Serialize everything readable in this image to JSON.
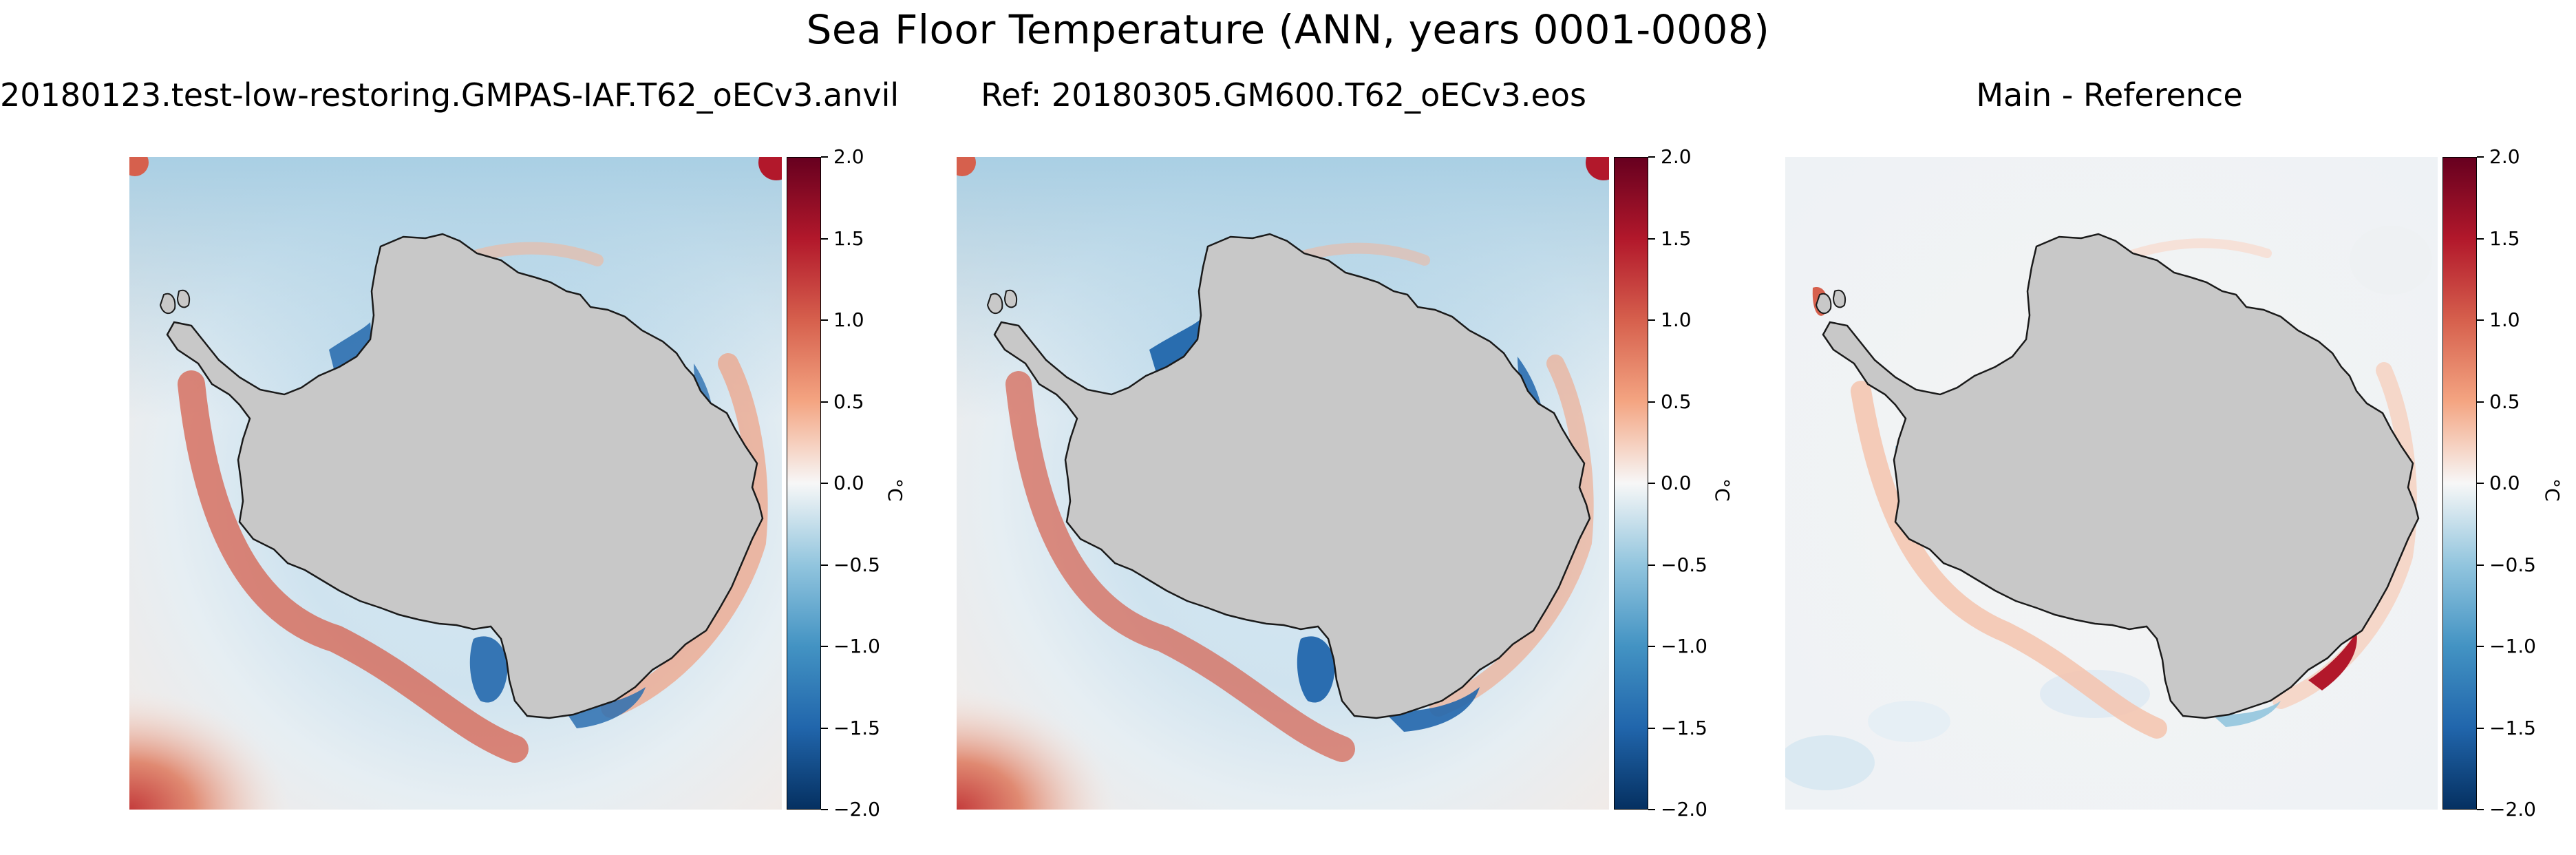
{
  "figure": {
    "title": "Sea Floor Temperature (ANN, years 0001-0008)"
  },
  "panels": [
    {
      "title": "20180123.test-low-restoring.GMPAS-IAF.T62_oECv3.anvil",
      "kind": "model"
    },
    {
      "title": "Ref: 20180305.GM600.T62_oECv3.eos",
      "kind": "reference"
    },
    {
      "title": "Main - Reference",
      "kind": "difference"
    }
  ],
  "colorbar": {
    "unit": "°C",
    "ticks": [
      "2.0",
      "1.5",
      "1.0",
      "0.5",
      "0.0",
      "−0.5",
      "−1.0",
      "−1.5",
      "−2.0"
    ],
    "range": [
      -2.0,
      2.0
    ],
    "colormap": "RdBu_r"
  },
  "colors": {
    "land": "#c8c8c8",
    "coast": "#1a1a1a",
    "deep_red": "#67001f",
    "red": "#b2182b",
    "salmon": "#f4a582",
    "white": "#f7f7f7",
    "light_blue": "#92c5de",
    "blue": "#4393c3",
    "deep_blue": "#053061"
  }
}
